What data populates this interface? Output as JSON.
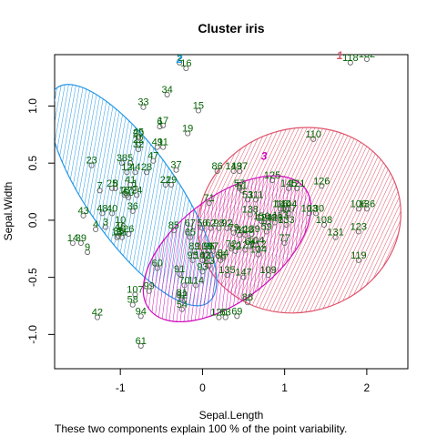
{
  "chart_data": {
    "type": "scatter",
    "title": "Cluster iris",
    "xlabel": "Sepal.Length",
    "ylabel": "Sepal.Width",
    "note": "These two components explain 100 % of the point variability.",
    "xlim": [
      -1.8,
      2.5
    ],
    "ylim": [
      -1.3,
      1.45
    ],
    "xticks": [
      -1,
      0,
      1,
      2
    ],
    "yticks": [
      -1.0,
      -0.5,
      0.0,
      0.5,
      1.0
    ],
    "ytick_labels": [
      "-1.0",
      "-0.5",
      "0.0",
      "0.5",
      "1.0"
    ],
    "grid": false,
    "colors": {
      "cluster_1": "#df536b",
      "cluster_2": "#2297e6",
      "cluster_3": "#cd0bbc",
      "points": "#666666",
      "point_labels": "#006400",
      "axes": "#000000"
    },
    "clusters": [
      {
        "label": "1",
        "center": [
          1.18,
          0.0
        ],
        "semi_axes": [
          1.25,
          0.8
        ],
        "angle_deg": 20,
        "label_pos": [
          1.67,
          1.41
        ]
      },
      {
        "label": "2",
        "center": [
          -0.85,
          0.22
        ],
        "semi_axes": [
          0.55,
          1.15
        ],
        "angle_deg": 35,
        "label_pos": [
          -0.28,
          1.38
        ]
      },
      {
        "label": "3",
        "center": [
          0.3,
          -0.25
        ],
        "semi_axes": [
          1.2,
          0.45
        ],
        "angle_deg": 38,
        "label_pos": [
          0.75,
          0.53
        ]
      }
    ],
    "points": [
      {
        "label": "16",
        "x": -0.2,
        "y": 1.33
      },
      {
        "label": "2",
        "x": -0.28,
        "y": 1.38
      },
      {
        "label": "34",
        "x": -0.43,
        "y": 1.1
      },
      {
        "label": "33",
        "x": -0.72,
        "y": 0.99
      },
      {
        "label": "15",
        "x": -0.05,
        "y": 0.96
      },
      {
        "label": "17",
        "x": -0.48,
        "y": 0.83
      },
      {
        "label": "6",
        "x": -0.52,
        "y": 0.82
      },
      {
        "label": "45",
        "x": -0.78,
        "y": 0.73
      },
      {
        "label": "20",
        "x": -0.78,
        "y": 0.72
      },
      {
        "label": "19",
        "x": -0.18,
        "y": 0.76
      },
      {
        "label": "22",
        "x": -0.78,
        "y": 0.66
      },
      {
        "label": "49",
        "x": -0.55,
        "y": 0.64
      },
      {
        "label": "11",
        "x": -0.48,
        "y": 0.64
      },
      {
        "label": "32",
        "x": -0.78,
        "y": 0.62
      },
      {
        "label": "47",
        "x": -0.6,
        "y": 0.52
      },
      {
        "label": "23",
        "x": -1.35,
        "y": 0.48
      },
      {
        "label": "38",
        "x": -0.98,
        "y": 0.5
      },
      {
        "label": "5",
        "x": -0.88,
        "y": 0.5
      },
      {
        "label": "37",
        "x": -0.32,
        "y": 0.44
      },
      {
        "label": "12",
        "x": -0.92,
        "y": 0.42
      },
      {
        "label": "44",
        "x": -0.82,
        "y": 0.42
      },
      {
        "label": "28",
        "x": -0.68,
        "y": 0.42
      },
      {
        "label": "21",
        "x": -0.45,
        "y": 0.31
      },
      {
        "label": "29",
        "x": -0.38,
        "y": 0.31
      },
      {
        "label": "41",
        "x": -0.88,
        "y": 0.31
      },
      {
        "label": "1",
        "x": -0.82,
        "y": 0.28
      },
      {
        "label": "24",
        "x": -0.8,
        "y": 0.22
      },
      {
        "label": "27",
        "x": -0.92,
        "y": 0.22
      },
      {
        "label": "18",
        "x": -0.95,
        "y": 0.22
      },
      {
        "label": "50",
        "x": -0.9,
        "y": 0.2
      },
      {
        "label": "7",
        "x": -1.25,
        "y": 0.26
      },
      {
        "label": "25",
        "x": -1.1,
        "y": 0.28
      },
      {
        "label": "8",
        "x": -1.06,
        "y": 0.28
      },
      {
        "label": "36",
        "x": -0.85,
        "y": 0.08
      },
      {
        "label": "43",
        "x": -1.45,
        "y": 0.04
      },
      {
        "label": "48",
        "x": -1.22,
        "y": 0.06
      },
      {
        "label": "40",
        "x": -1.1,
        "y": 0.06
      },
      {
        "label": "4",
        "x": -1.3,
        "y": -0.08
      },
      {
        "label": "3",
        "x": -1.18,
        "y": -0.06
      },
      {
        "label": "10",
        "x": -1.0,
        "y": -0.04
      },
      {
        "label": "46",
        "x": -1.0,
        "y": -0.1
      },
      {
        "label": "35",
        "x": -1.02,
        "y": -0.14
      },
      {
        "label": "31",
        "x": -0.98,
        "y": -0.15
      },
      {
        "label": "13",
        "x": -1.04,
        "y": -0.15
      },
      {
        "label": "26",
        "x": -0.9,
        "y": -0.12
      },
      {
        "label": "14",
        "x": -1.58,
        "y": -0.2
      },
      {
        "label": "39",
        "x": -1.48,
        "y": -0.2
      },
      {
        "label": "9",
        "x": -1.4,
        "y": -0.28
      },
      {
        "label": "42",
        "x": -1.28,
        "y": -0.85
      },
      {
        "label": "118",
        "x": 1.8,
        "y": 1.38
      },
      {
        "label": "132",
        "x": 2.0,
        "y": 1.41
      },
      {
        "label": "110",
        "x": 1.35,
        "y": 0.71
      },
      {
        "label": "126",
        "x": 1.45,
        "y": 0.3
      },
      {
        "label": "86",
        "x": 0.18,
        "y": 0.43
      },
      {
        "label": "149",
        "x": 0.38,
        "y": 0.43
      },
      {
        "label": "137",
        "x": 0.45,
        "y": 0.43
      },
      {
        "label": "125",
        "x": 0.85,
        "y": 0.35
      },
      {
        "label": "145",
        "x": 1.05,
        "y": 0.28
      },
      {
        "label": "121",
        "x": 1.15,
        "y": 0.28
      },
      {
        "label": "57",
        "x": 0.45,
        "y": 0.28
      },
      {
        "label": "51",
        "x": 0.48,
        "y": 0.26
      },
      {
        "label": "53",
        "x": 0.55,
        "y": 0.18
      },
      {
        "label": "111",
        "x": 0.65,
        "y": 0.18
      },
      {
        "label": "71",
        "x": 0.08,
        "y": 0.15
      },
      {
        "label": "140",
        "x": 0.98,
        "y": 0.1
      },
      {
        "label": "144",
        "x": 1.05,
        "y": 0.1
      },
      {
        "label": "117",
        "x": 1.05,
        "y": 0.06
      },
      {
        "label": "116",
        "x": 0.95,
        "y": 0.1
      },
      {
        "label": "138",
        "x": 0.58,
        "y": 0.05
      },
      {
        "label": "113",
        "x": 0.95,
        "y": 0.0
      },
      {
        "label": "103",
        "x": 1.3,
        "y": 0.06
      },
      {
        "label": "130",
        "x": 1.38,
        "y": 0.06
      },
      {
        "label": "106",
        "x": 1.9,
        "y": 0.1
      },
      {
        "label": "136",
        "x": 2.0,
        "y": 0.1
      },
      {
        "label": "108",
        "x": 1.48,
        "y": -0.04
      },
      {
        "label": "131",
        "x": 1.62,
        "y": -0.15
      },
      {
        "label": "123",
        "x": 1.9,
        "y": -0.1
      },
      {
        "label": "119",
        "x": 1.9,
        "y": -0.35
      },
      {
        "label": "124",
        "x": 0.75,
        "y": -0.02
      },
      {
        "label": "150",
        "x": 0.72,
        "y": -0.01
      },
      {
        "label": "129",
        "x": 0.88,
        "y": -0.02
      },
      {
        "label": "146",
        "x": 0.8,
        "y": -0.02
      },
      {
        "label": "59",
        "x": 0.78,
        "y": -0.1
      },
      {
        "label": "133",
        "x": 1.02,
        "y": -0.04
      },
      {
        "label": "77",
        "x": 1.0,
        "y": -0.2
      },
      {
        "label": "85",
        "x": -0.35,
        "y": -0.09
      },
      {
        "label": "67",
        "x": -0.15,
        "y": -0.07
      },
      {
        "label": "56",
        "x": 0.0,
        "y": -0.07
      },
      {
        "label": "62",
        "x": 0.1,
        "y": -0.07
      },
      {
        "label": "98",
        "x": 0.2,
        "y": -0.07
      },
      {
        "label": "92",
        "x": 0.3,
        "y": -0.07
      },
      {
        "label": "65",
        "x": -0.15,
        "y": -0.15
      },
      {
        "label": "79",
        "x": 0.38,
        "y": -0.11
      },
      {
        "label": "74",
        "x": 0.45,
        "y": -0.13
      },
      {
        "label": "128",
        "x": 0.52,
        "y": -0.13
      },
      {
        "label": "139",
        "x": 0.6,
        "y": -0.12
      },
      {
        "label": "64",
        "x": 0.58,
        "y": -0.23
      },
      {
        "label": "127",
        "x": 0.52,
        "y": -0.26
      },
      {
        "label": "112",
        "x": 0.68,
        "y": -0.25
      },
      {
        "label": "104",
        "x": 0.65,
        "y": -0.22
      },
      {
        "label": "72",
        "x": 0.35,
        "y": -0.25
      },
      {
        "label": "134",
        "x": 0.68,
        "y": -0.3
      },
      {
        "label": "100",
        "x": 0.02,
        "y": -0.27
      },
      {
        "label": "96",
        "x": 0.08,
        "y": -0.27
      },
      {
        "label": "97",
        "x": 0.13,
        "y": -0.27
      },
      {
        "label": "84",
        "x": 0.25,
        "y": -0.33
      },
      {
        "label": "52",
        "x": 0.4,
        "y": -0.27
      },
      {
        "label": "89",
        "x": -0.1,
        "y": -0.27
      },
      {
        "label": "95",
        "x": -0.12,
        "y": -0.35
      },
      {
        "label": "102",
        "x": 0.0,
        "y": -0.35
      },
      {
        "label": "143",
        "x": 0.0,
        "y": -0.35
      },
      {
        "label": "66",
        "x": 0.22,
        "y": -0.35
      },
      {
        "label": "83",
        "x": 0.08,
        "y": -0.4
      },
      {
        "label": "93",
        "x": 0.0,
        "y": -0.45
      },
      {
        "label": "135",
        "x": 0.3,
        "y": -0.48
      },
      {
        "label": "147",
        "x": 0.5,
        "y": -0.5
      },
      {
        "label": "109",
        "x": 0.8,
        "y": -0.48
      },
      {
        "label": "60",
        "x": -0.55,
        "y": -0.42
      },
      {
        "label": "91",
        "x": -0.28,
        "y": -0.47
      },
      {
        "label": "70",
        "x": -0.22,
        "y": -0.57
      },
      {
        "label": "114",
        "x": -0.08,
        "y": -0.57
      },
      {
        "label": "107",
        "x": -0.82,
        "y": -0.65
      },
      {
        "label": "99",
        "x": -0.65,
        "y": -0.62
      },
      {
        "label": "58",
        "x": -0.85,
        "y": -0.74
      },
      {
        "label": "81",
        "x": -0.25,
        "y": -0.68
      },
      {
        "label": "82",
        "x": -0.25,
        "y": -0.7
      },
      {
        "label": "88",
        "x": 0.55,
        "y": -0.72
      },
      {
        "label": "54",
        "x": -0.25,
        "y": -0.78
      },
      {
        "label": "94",
        "x": -0.75,
        "y": -0.84
      },
      {
        "label": "120",
        "x": 0.2,
        "y": -0.85
      },
      {
        "label": "63",
        "x": 0.28,
        "y": -0.85
      },
      {
        "label": "69",
        "x": 0.42,
        "y": -0.84
      },
      {
        "label": "61",
        "x": -0.75,
        "y": -1.1
      }
    ]
  }
}
